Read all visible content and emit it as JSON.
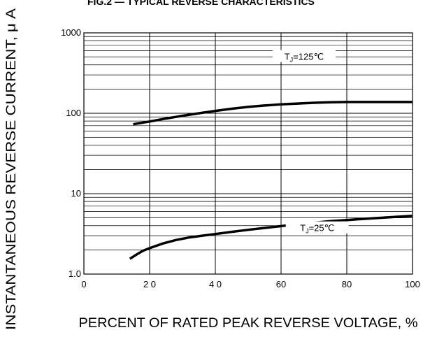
{
  "chart_data": {
    "type": "line",
    "title": "FIG.2 — TYPICAL REVERSE CHARACTERISTICS",
    "xlabel": "PERCENT OF RATED PEAK REVERSE VOLTAGE, %",
    "ylabel": "INSTANTANEOUS REVERSE CURRENT, μ A",
    "x_scale": "linear",
    "y_scale": "log",
    "xlim": [
      0,
      100
    ],
    "ylim": [
      1.0,
      1000
    ],
    "grid": true,
    "x_ticks": [
      "0",
      "2 0",
      "4 0",
      "60",
      "80",
      "100"
    ],
    "y_ticks": [
      "1.0",
      "10",
      "100",
      "1000"
    ],
    "series": [
      {
        "name": "TJ=125℃",
        "x": [
          15,
          20,
          25,
          30,
          35,
          40,
          45,
          50,
          55,
          60,
          65,
          70,
          75,
          80,
          85,
          90,
          95,
          100
        ],
        "y": [
          73,
          79,
          86,
          93,
          100,
          107,
          114,
          120,
          125,
          129,
          132,
          135,
          137,
          138,
          138,
          138,
          138,
          138
        ]
      },
      {
        "name": "TJ=25℃",
        "x": [
          14,
          16,
          18,
          20,
          24,
          28,
          32,
          36,
          40,
          45,
          50,
          55,
          60,
          65,
          70,
          75,
          80,
          85,
          90,
          95,
          100
        ],
        "y": [
          1.55,
          1.75,
          1.95,
          2.1,
          2.4,
          2.65,
          2.85,
          3.0,
          3.15,
          3.35,
          3.55,
          3.75,
          3.95,
          4.15,
          4.35,
          4.55,
          4.7,
          4.85,
          5.0,
          5.15,
          5.3
        ]
      }
    ]
  }
}
